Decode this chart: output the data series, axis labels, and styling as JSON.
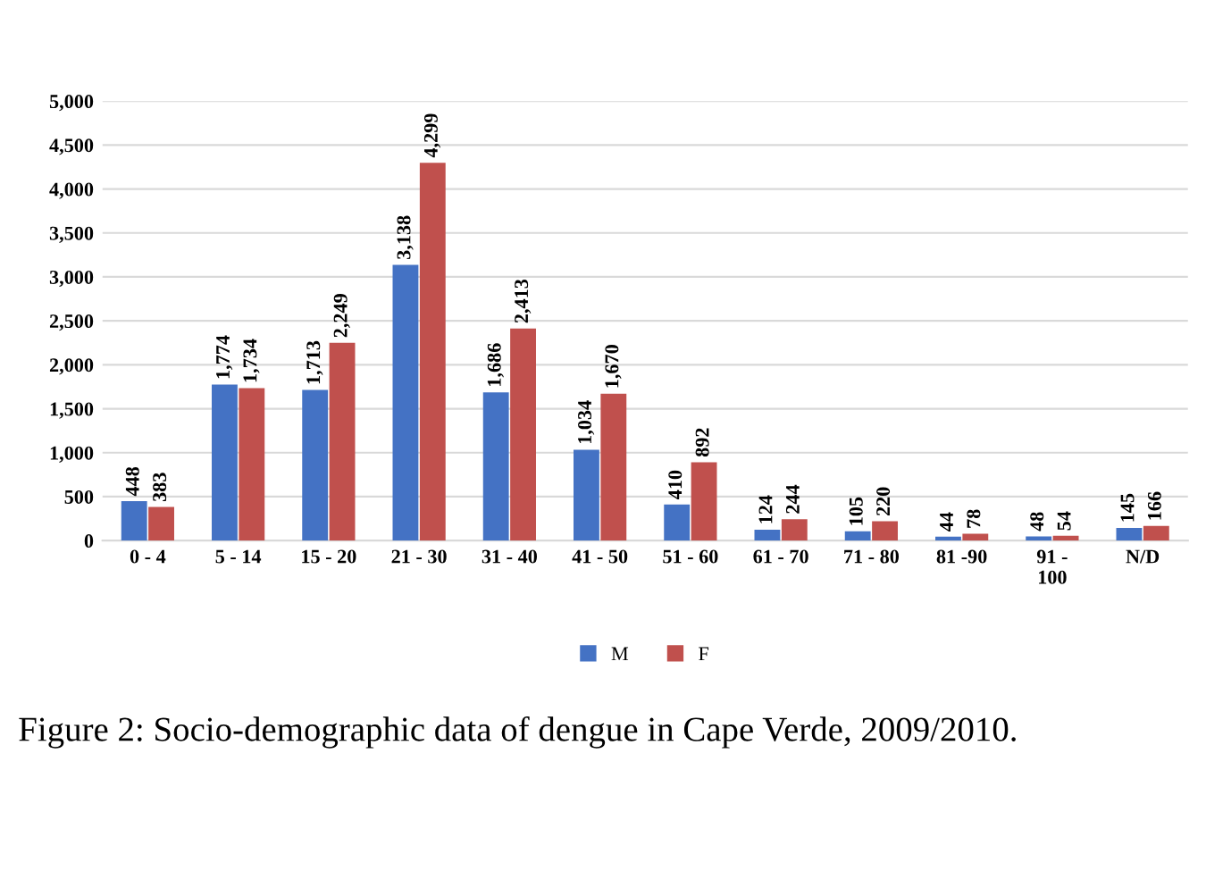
{
  "chart_data": {
    "type": "bar",
    "categories": [
      "0 - 4",
      "5 - 14",
      "15 - 20",
      "21 - 30",
      "31 - 40",
      "41 - 50",
      "51 - 60",
      "61 - 70",
      "71 - 80",
      "81 -90",
      "91 -\n100",
      "N/D"
    ],
    "series": [
      {
        "name": "M",
        "color": "#4472c4",
        "values": [
          448,
          1774,
          1713,
          3138,
          1686,
          1034,
          410,
          124,
          105,
          44,
          48,
          145
        ],
        "value_labels": [
          "448",
          "1,774",
          "1,713",
          "3,138",
          "1,686",
          "1,034",
          "410",
          "124",
          "105",
          "44",
          "48",
          "145"
        ]
      },
      {
        "name": "F",
        "color": "#c0504d",
        "values": [
          383,
          1734,
          2249,
          4299,
          2413,
          1670,
          892,
          244,
          220,
          78,
          54,
          166
        ],
        "value_labels": [
          "383",
          "1,734",
          "2,249",
          "4,299",
          "2,413",
          "1,670",
          "892",
          "244",
          "220",
          "78",
          "54",
          "166"
        ]
      }
    ],
    "ylim": [
      0,
      5000
    ],
    "yticks": [
      0,
      500,
      {
        "value": 1000,
        "label": "1,000"
      },
      {
        "value": 1500,
        "label": "1,500"
      },
      {
        "value": 2000,
        "label": "2,000"
      },
      {
        "value": 2500,
        "label": "2,500"
      },
      {
        "value": 3000,
        "label": "3,000"
      },
      {
        "value": 3500,
        "label": "3,500"
      },
      {
        "value": 4000,
        "label": "4,000"
      },
      {
        "value": 4500,
        "label": "4,500"
      },
      {
        "value": 5000,
        "label": "5,000"
      }
    ],
    "grid": "y",
    "legend": "bottom",
    "annotations": [
      "Figure 2: Socio-demographic data of dengue in Cape Verde, 2009/2010."
    ]
  }
}
